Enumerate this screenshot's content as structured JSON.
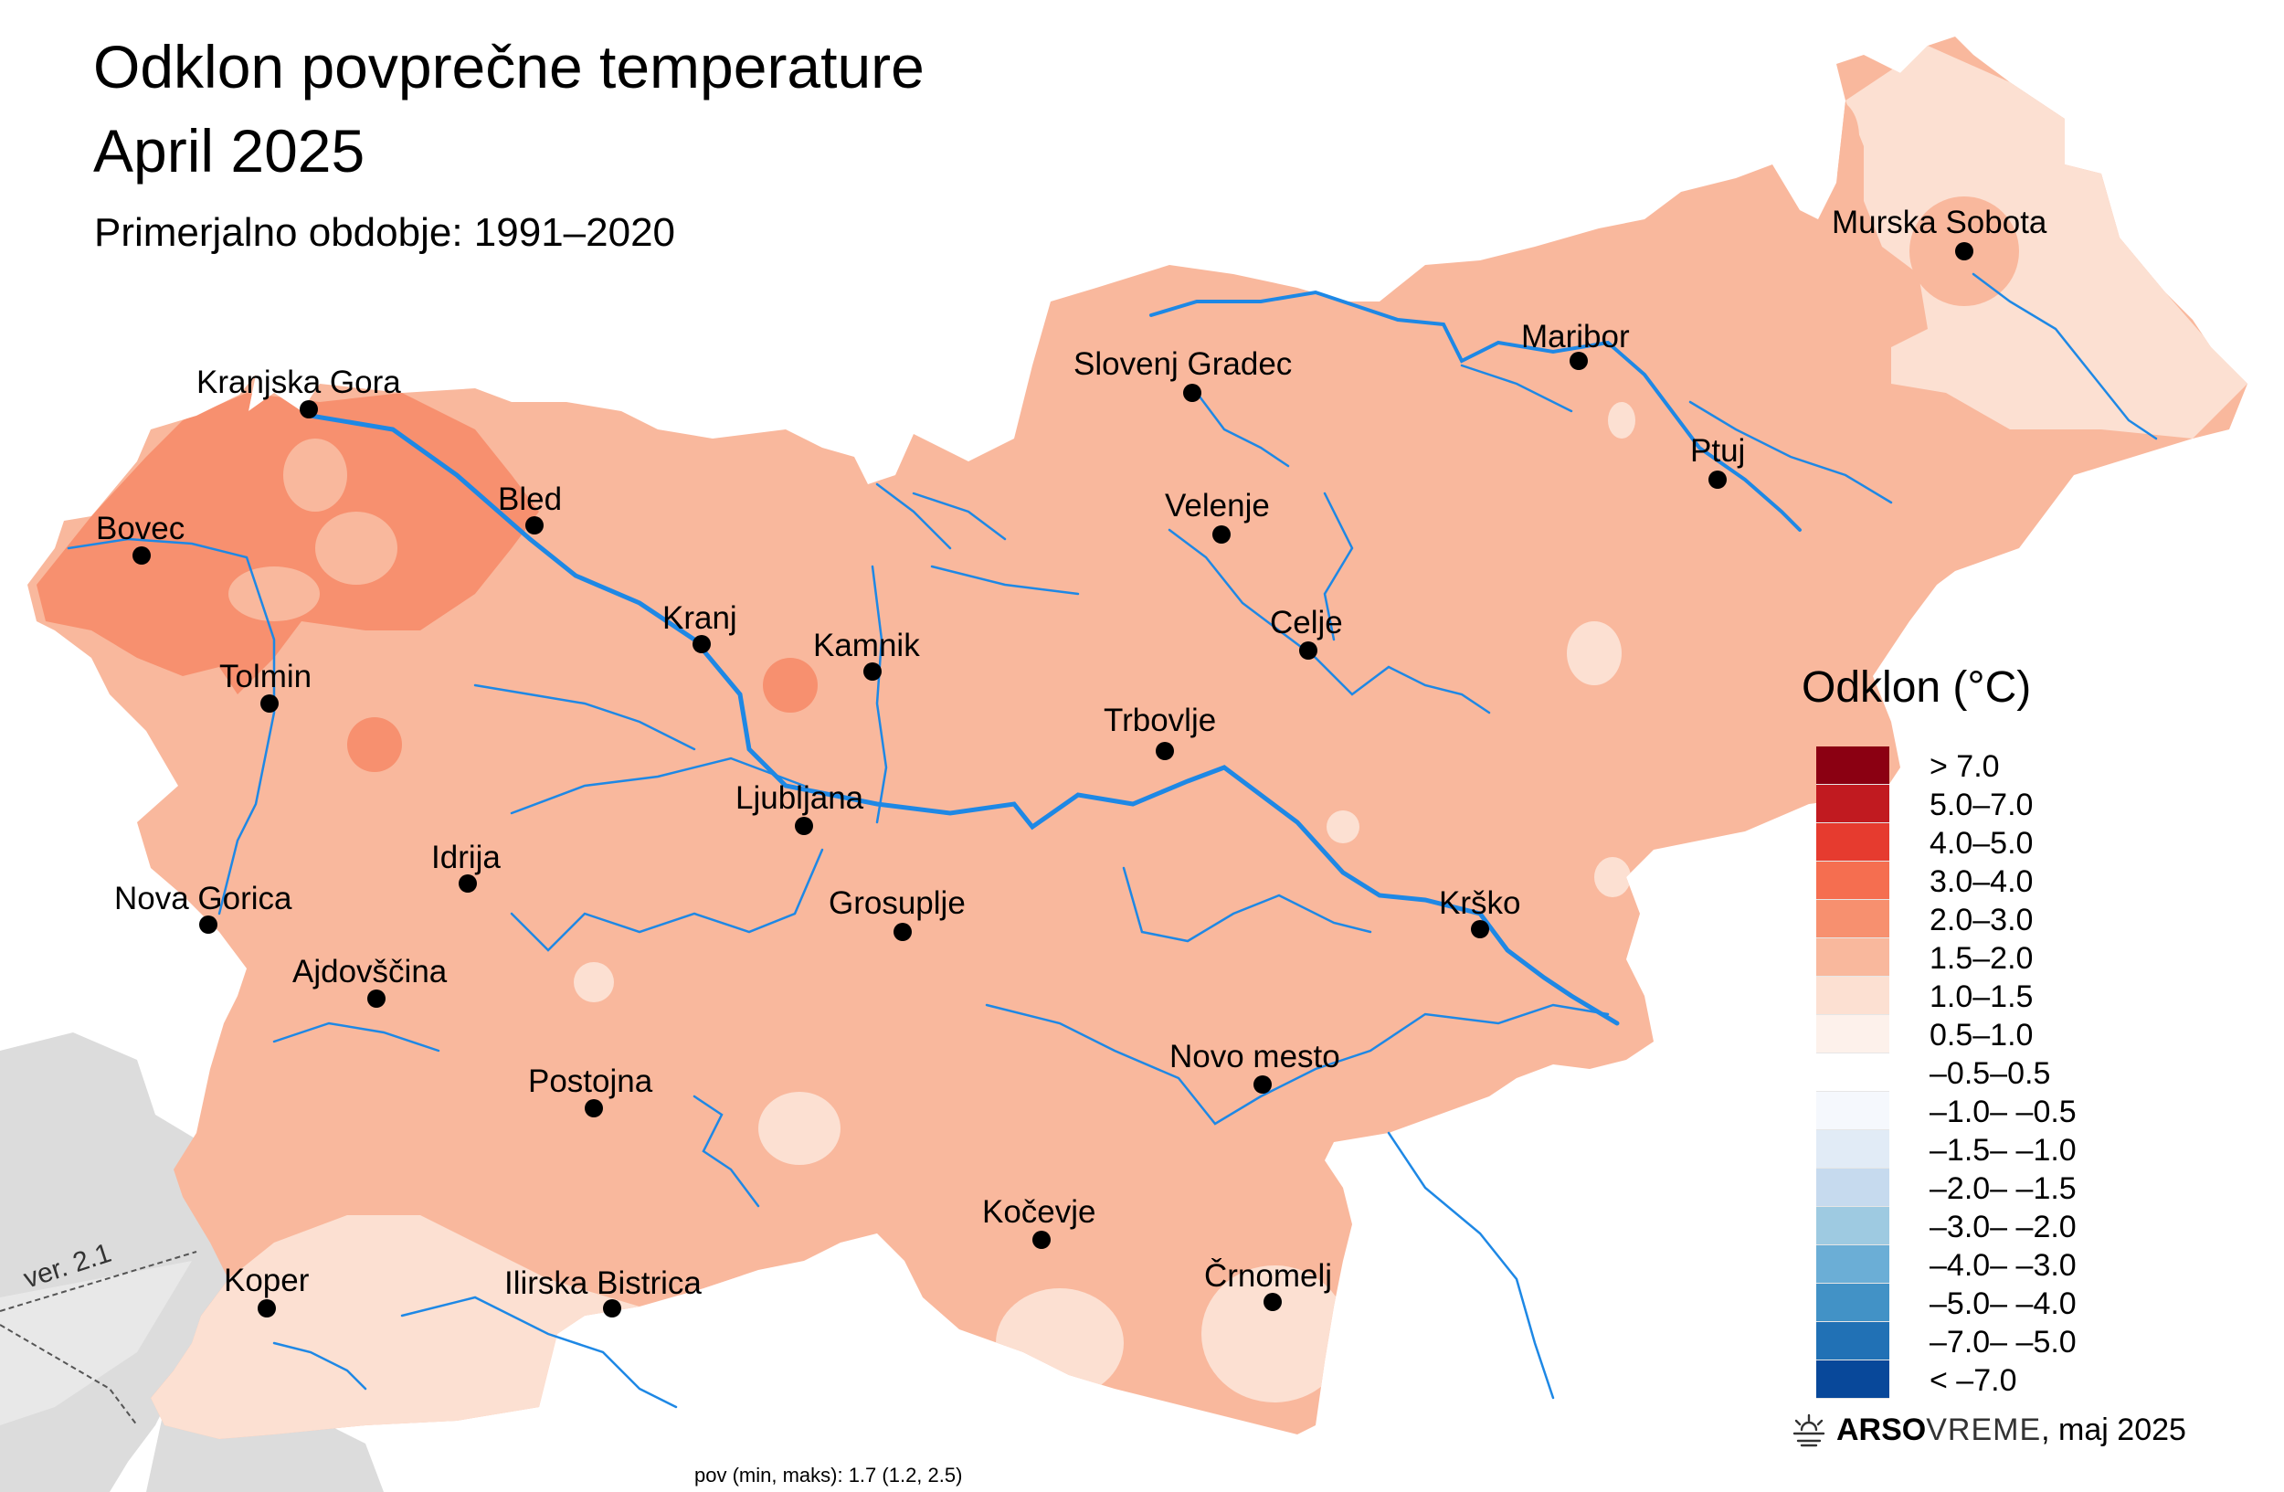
{
  "title": {
    "line1": "Odklon povprečne temperature",
    "line2": "April 2025",
    "subtitle": "Primerjalno obdobje: 1991–2020"
  },
  "cities": [
    {
      "name": "Murska Sobota"
    },
    {
      "name": "Maribor"
    },
    {
      "name": "Slovenj Gradec"
    },
    {
      "name": "Ptuj"
    },
    {
      "name": "Kranjska Gora"
    },
    {
      "name": "Bled"
    },
    {
      "name": "Bovec"
    },
    {
      "name": "Velenje"
    },
    {
      "name": "Kranj"
    },
    {
      "name": "Kamnik"
    },
    {
      "name": "Celje"
    },
    {
      "name": "Tolmin"
    },
    {
      "name": "Trbovlje"
    },
    {
      "name": "Ljubljana"
    },
    {
      "name": "Idrija"
    },
    {
      "name": "Nova Gorica"
    },
    {
      "name": "Grosuplje"
    },
    {
      "name": "Krško"
    },
    {
      "name": "Ajdovščina"
    },
    {
      "name": "Novo mesto"
    },
    {
      "name": "Postojna"
    },
    {
      "name": "Kočevje"
    },
    {
      "name": "Črnomelj"
    },
    {
      "name": "Koper"
    },
    {
      "name": "Ilirska Bistrica"
    }
  ],
  "legend": {
    "title": "Odklon (°C)",
    "classes": [
      {
        "label": "> 7.0",
        "color": "#8b0012"
      },
      {
        "label": "5.0–7.0",
        "color": "#c11a20"
      },
      {
        "label": "4.0–5.0",
        "color": "#e63b2f"
      },
      {
        "label": "3.0–4.0",
        "color": "#f56e50"
      },
      {
        "label": "2.0–3.0",
        "color": "#f7906f"
      },
      {
        "label": "1.5–2.0",
        "color": "#f9b89d"
      },
      {
        "label": "1.0–1.5",
        "color": "#fce0d2"
      },
      {
        "label": "0.5–1.0",
        "color": "#fdf1eb"
      },
      {
        "label": "–0.5–0.5",
        "color": "#ffffff"
      },
      {
        "label": "–1.0– –0.5",
        "color": "#f5f8fd"
      },
      {
        "label": "–1.5– –1.0",
        "color": "#e1ebf6"
      },
      {
        "label": "–2.0– –1.5",
        "color": "#c6daee"
      },
      {
        "label": "–3.0– –2.0",
        "color": "#9ecae1"
      },
      {
        "label": "–4.0– –3.0",
        "color": "#6baed6"
      },
      {
        "label": "–5.0– –4.0",
        "color": "#4292c6"
      },
      {
        "label": "–7.0– –5.0",
        "color": "#2171b5"
      },
      {
        "label": "< –7.0",
        "color": "#08489a"
      }
    ]
  },
  "colors": {
    "base_fill": "#f9b89d",
    "warm_fill": "#f7906f",
    "light_fill": "#fce0d2",
    "river": "#1e88e5",
    "neighbor": "#dcdcdc"
  },
  "credit": {
    "brand": "ARSO",
    "product": "VREME",
    "date": ", maj 2025",
    "icon": "arso-sun-icon"
  },
  "stats": "pov (min, maks): 1.7 (1.2, 2.5)",
  "version": "ver. 2.1"
}
